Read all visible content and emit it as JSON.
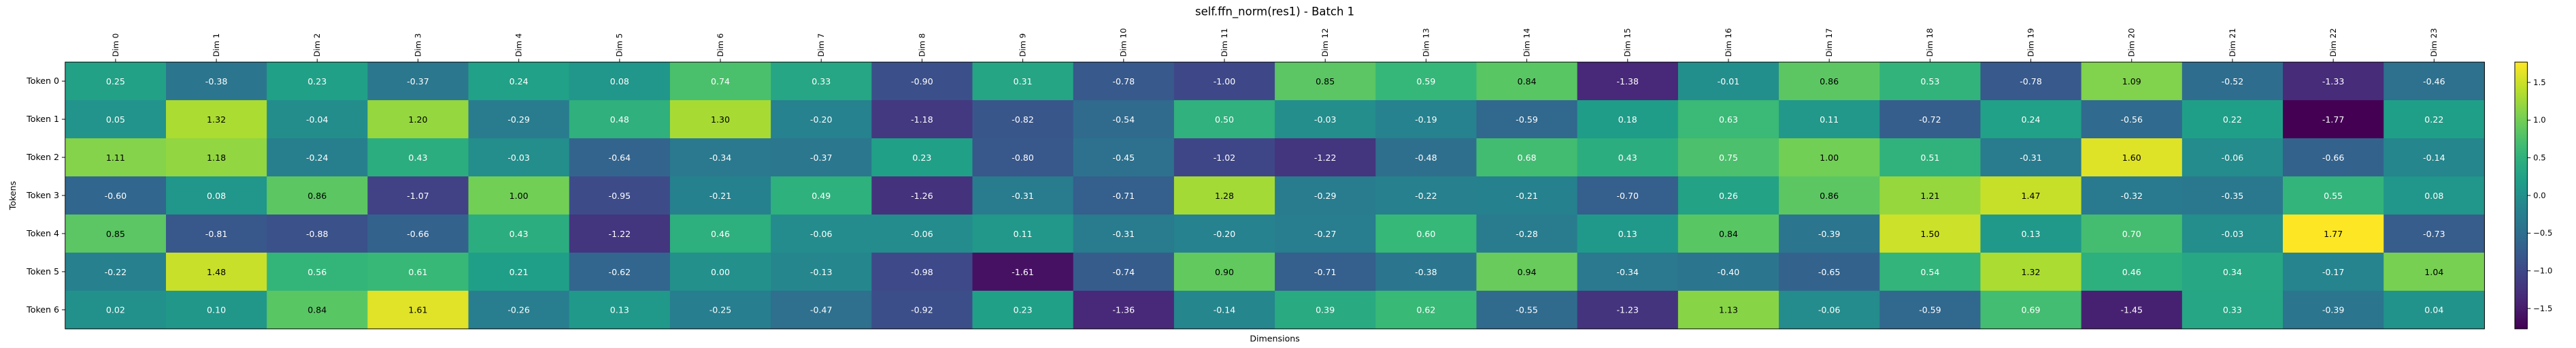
{
  "chart_data": {
    "type": "heatmap",
    "title": "self.ffn_norm(res1) - Batch 1",
    "xlabel": "Dimensions",
    "ylabel": "Tokens",
    "x": [
      "Dim 0",
      "Dim 1",
      "Dim 2",
      "Dim 3",
      "Dim 4",
      "Dim 5",
      "Dim 6",
      "Dim 7",
      "Dim 8",
      "Dim 9",
      "Dim 10",
      "Dim 11",
      "Dim 12",
      "Dim 13",
      "Dim 14",
      "Dim 15",
      "Dim 16",
      "Dim 17",
      "Dim 18",
      "Dim 19",
      "Dim 20",
      "Dim 21",
      "Dim 22",
      "Dim 23"
    ],
    "y": [
      "Token 0",
      "Token 1",
      "Token 2",
      "Token 3",
      "Token 4",
      "Token 5",
      "Token 6"
    ],
    "values": [
      [
        0.25,
        -0.38,
        0.23,
        -0.37,
        0.24,
        0.08,
        0.74,
        0.33,
        -0.9,
        0.31,
        -0.78,
        -1.0,
        0.85,
        0.59,
        0.84,
        -1.38,
        -0.01,
        0.86,
        0.53,
        -0.78,
        1.09,
        -0.52,
        -1.33,
        -0.46
      ],
      [
        0.05,
        1.32,
        -0.04,
        1.2,
        -0.29,
        0.48,
        1.3,
        -0.2,
        -1.18,
        -0.82,
        -0.54,
        0.5,
        -0.03,
        -0.19,
        -0.59,
        0.18,
        0.63,
        0.11,
        -0.72,
        0.24,
        -0.56,
        0.22,
        -1.77,
        0.22
      ],
      [
        1.11,
        1.18,
        -0.24,
        0.43,
        -0.03,
        -0.64,
        -0.34,
        -0.37,
        0.23,
        -0.8,
        -0.45,
        -1.02,
        -1.22,
        -0.48,
        0.68,
        0.43,
        0.75,
        1.0,
        0.51,
        -0.31,
        1.6,
        -0.06,
        -0.66,
        -0.14
      ],
      [
        -0.6,
        0.08,
        0.86,
        -1.07,
        1.0,
        -0.95,
        -0.21,
        0.49,
        -1.26,
        -0.31,
        -0.71,
        1.28,
        -0.29,
        -0.22,
        -0.21,
        -0.7,
        0.26,
        0.86,
        1.21,
        1.47,
        -0.32,
        -0.35,
        0.55,
        0.08
      ],
      [
        0.85,
        -0.81,
        -0.88,
        -0.66,
        0.43,
        -1.22,
        0.46,
        -0.06,
        -0.06,
        0.11,
        -0.31,
        -0.2,
        -0.27,
        0.6,
        -0.28,
        0.13,
        0.84,
        -0.39,
        1.5,
        0.13,
        0.7,
        -0.03,
        1.77,
        -0.73
      ],
      [
        -0.22,
        1.48,
        0.56,
        0.61,
        0.21,
        -0.62,
        0.0,
        -0.13,
        -0.98,
        -1.61,
        -0.74,
        0.9,
        -0.71,
        -0.38,
        0.94,
        -0.34,
        -0.4,
        -0.65,
        0.54,
        1.32,
        0.46,
        0.34,
        -0.17,
        1.04
      ],
      [
        0.02,
        0.1,
        0.84,
        1.61,
        -0.26,
        0.13,
        -0.25,
        -0.47,
        -0.92,
        0.23,
        -1.36,
        -0.14,
        0.39,
        0.62,
        -0.55,
        -1.23,
        1.13,
        -0.06,
        -0.59,
        0.69,
        -1.45,
        0.33,
        -0.39,
        0.04
      ]
    ],
    "colormap": "viridis",
    "vmin": -1.77,
    "vmax": 1.77,
    "colorbar_ticks": [
      1.5,
      1.0,
      0.5,
      0.0,
      -0.5,
      -1.0,
      -1.5
    ],
    "colorbar_labels": [
      "1.5",
      "1.0",
      "0.5",
      "0.0",
      "−0.5",
      "−1.0",
      "−1.5"
    ]
  }
}
